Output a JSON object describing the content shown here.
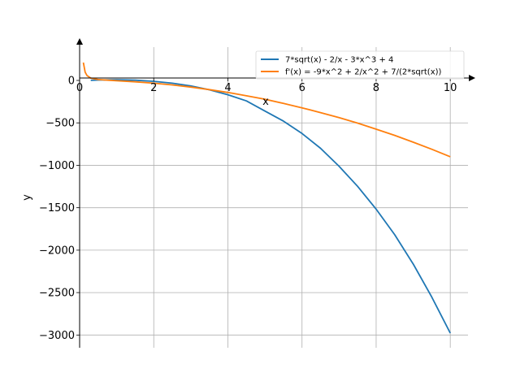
{
  "chart_data": {
    "type": "line",
    "title": "",
    "xlabel": "x",
    "ylabel": "y",
    "xlim": [
      0,
      10.5
    ],
    "ylim": [
      -3150,
      450
    ],
    "grid": true,
    "legend_position": "top-right",
    "x_ticks": [
      0,
      2,
      4,
      6,
      8,
      10
    ],
    "x_tick_labels": [
      "0",
      "2",
      "4",
      "6",
      "8",
      "10"
    ],
    "y_ticks": [
      0,
      -500,
      -1000,
      -1500,
      -2000,
      -2500,
      -3000
    ],
    "y_tick_labels": [
      "0",
      "−500",
      "−1000",
      "−1500",
      "−2000",
      "−2500",
      "−3000"
    ],
    "series": [
      {
        "name": "7*sqrt(x) - 2/x - 3*x^3 + 4",
        "color": "#1f77b4",
        "x": [
          0.3,
          0.5,
          1,
          1.5,
          2,
          2.5,
          3,
          3.5,
          4,
          4.5,
          5,
          5.5,
          6,
          6.5,
          7,
          7.5,
          8,
          8.5,
          9,
          9.5,
          10
        ],
        "y": [
          1.1,
          4.6,
          8.0,
          3.1,
          -10.1,
          -32.6,
          -65.5,
          -110.1,
          -168.5,
          -241.6,
          -361.3,
          -479.9,
          -625.2,
          -799.4,
          -1010.8,
          -1247.7,
          -1517.2,
          -1818.6,
          -2164.0,
          -2552.8,
          -2978.0
        ]
      },
      {
        "name": "f'(x) = -9*x^2 + 2/x^2 + 7/(2*sqrt(x))",
        "color": "#ff7f0e",
        "x": [
          0.1,
          0.15,
          0.2,
          0.3,
          0.5,
          1,
          1.5,
          2,
          2.5,
          3,
          3.5,
          4,
          4.5,
          5,
          5.5,
          6,
          6.5,
          7,
          7.5,
          8,
          8.5,
          9,
          9.5,
          10
        ],
        "y": [
          211.0,
          97.9,
          57.5,
          28.0,
          10.7,
          -3.5,
          -16.4,
          -33.0,
          -52.7,
          -78.8,
          -108.2,
          -142.1,
          -180.6,
          -221.4,
          -270.8,
          -322.6,
          -379.0,
          -438.6,
          -503.0,
          -574.7,
          -647.0,
          -727.8,
          -810.6,
          -898.9
        ]
      }
    ]
  }
}
